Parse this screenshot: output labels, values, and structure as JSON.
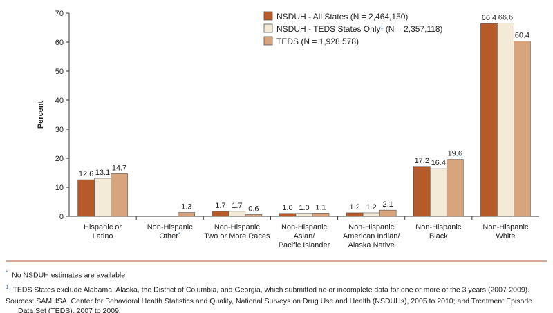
{
  "chart_data": {
    "type": "bar",
    "ylabel": "Percent",
    "ylim": [
      0,
      70
    ],
    "yticks": [
      0,
      10,
      20,
      30,
      40,
      50,
      60,
      70
    ],
    "grid": false,
    "legend_placement": "top-center",
    "categories": [
      [
        "Hispanic or",
        "Latino"
      ],
      [
        "Non-Hispanic",
        "Other*"
      ],
      [
        "Non-Hispanic",
        "Two or More Races"
      ],
      [
        "Non-Hispanic",
        "Asian/",
        "Pacific Islander"
      ],
      [
        "Non-Hispanic",
        "American Indian/",
        "Alaska Native"
      ],
      [
        "Non-Hispanic",
        "Black"
      ],
      [
        "Non-Hispanic",
        "White"
      ]
    ],
    "series": [
      {
        "name": "NSDUH - All States (N = 2,464,150)",
        "color": "#b65a29",
        "values": [
          12.6,
          null,
          1.7,
          1.0,
          1.2,
          17.2,
          66.4
        ]
      },
      {
        "name": "NSDUH - TEDS States Only¹ (N = 2,357,118)",
        "color": "#f3ebd8",
        "values": [
          13.1,
          null,
          1.7,
          1.0,
          1.2,
          16.4,
          66.6
        ]
      },
      {
        "name": "TEDS (N = 1,928,578)",
        "color": "#d8a47c",
        "values": [
          14.7,
          1.3,
          0.6,
          1.1,
          2.1,
          19.6,
          60.4
        ]
      }
    ]
  },
  "notes": {
    "asterisk": "No NSDUH estimates are available.",
    "footnote1": "TEDS States exclude Alabama, Alaska, the District of Columbia, and Georgia, which submitted no or incomplete data for one or more of the 3 years (2007-2009).",
    "sources": "Sources: SAMHSA, Center for Behavioral Health Statistics and Quality, National Surveys on Drug Use and Health (NSDUHs), 2005 to 2010; and Treatment Episode Data Set (TEDS), 2007 to 2009."
  },
  "colors": {
    "separator": "#b87a55",
    "footnote_marker": "#4a7fb5"
  }
}
